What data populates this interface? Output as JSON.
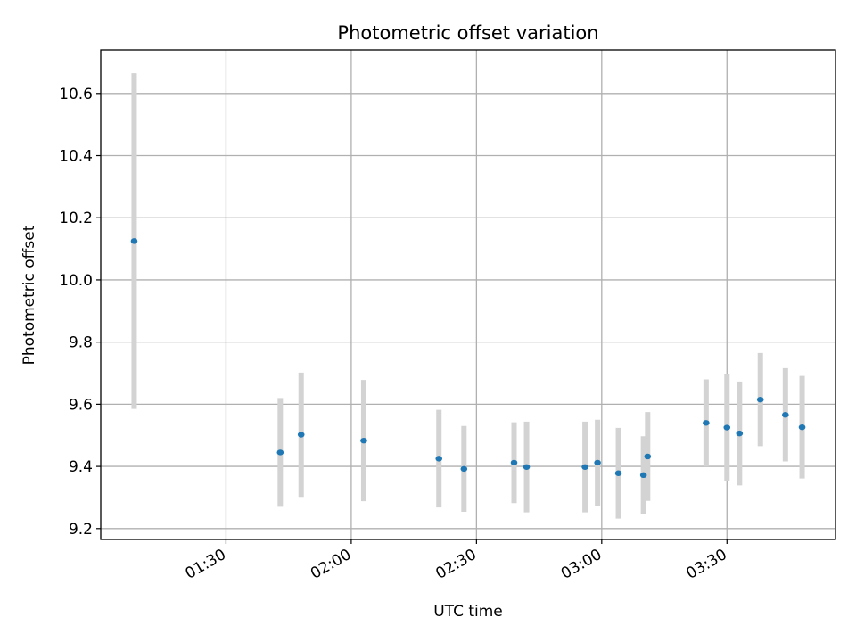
{
  "chart_data": {
    "type": "scatter",
    "title": "Photometric offset variation",
    "xlabel": "UTC time",
    "ylabel": "Photometric offset",
    "x_ticks": [
      "01:30",
      "02:00",
      "02:30",
      "03:00",
      "03:30"
    ],
    "y_ticks": [
      "9.2",
      "9.4",
      "9.6",
      "9.8",
      "10.0",
      "10.2",
      "10.4",
      "10.6"
    ],
    "xlim": [
      "01:00",
      "03:56"
    ],
    "ylim": [
      9.165,
      10.74
    ],
    "grid": true,
    "colors": {
      "point": "#1f77b4",
      "errorbar": "#d3d3d3",
      "grid": "#b0b0b0"
    },
    "points": [
      {
        "x": "01:08",
        "y": 10.125,
        "err": 0.54
      },
      {
        "x": "01:43",
        "y": 9.445,
        "err": 0.175
      },
      {
        "x": "01:48",
        "y": 9.502,
        "err": 0.2
      },
      {
        "x": "02:03",
        "y": 9.483,
        "err": 0.195
      },
      {
        "x": "02:21",
        "y": 9.425,
        "err": 0.157
      },
      {
        "x": "02:27",
        "y": 9.392,
        "err": 0.138
      },
      {
        "x": "02:39",
        "y": 9.412,
        "err": 0.13
      },
      {
        "x": "02:42",
        "y": 9.398,
        "err": 0.146
      },
      {
        "x": "02:56",
        "y": 9.398,
        "err": 0.146
      },
      {
        "x": "02:59",
        "y": 9.412,
        "err": 0.138
      },
      {
        "x": "03:04",
        "y": 9.378,
        "err": 0.146
      },
      {
        "x": "03:10",
        "y": 9.372,
        "err": 0.125
      },
      {
        "x": "03:11",
        "y": 9.432,
        "err": 0.143
      },
      {
        "x": "03:25",
        "y": 9.54,
        "err": 0.14
      },
      {
        "x": "03:30",
        "y": 9.525,
        "err": 0.173
      },
      {
        "x": "03:33",
        "y": 9.506,
        "err": 0.167
      },
      {
        "x": "03:38",
        "y": 9.615,
        "err": 0.15
      },
      {
        "x": "03:44",
        "y": 9.566,
        "err": 0.15
      },
      {
        "x": "03:48",
        "y": 9.526,
        "err": 0.165
      }
    ]
  }
}
